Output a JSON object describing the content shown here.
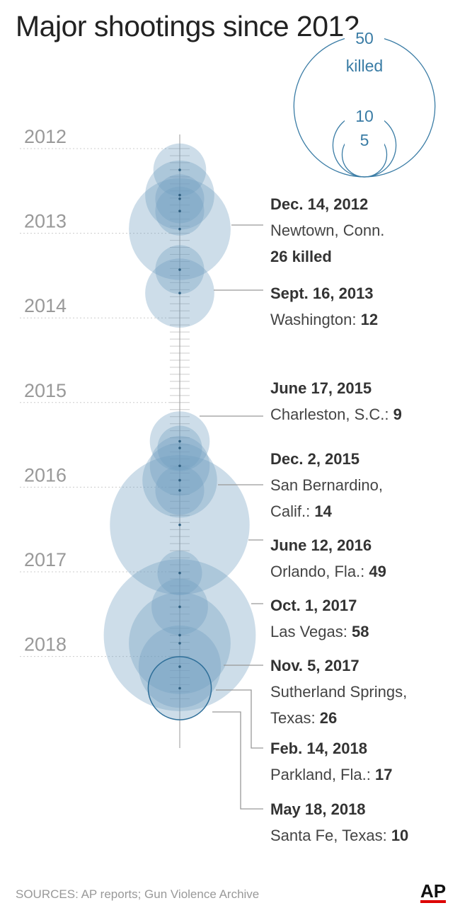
{
  "chart_data": {
    "type": "bubble-timeline",
    "title": "Major shootings since 2012",
    "y_axis_ticks": [
      "2012",
      "2013",
      "2014",
      "2015",
      "2016",
      "2017",
      "2018"
    ],
    "size_legend": {
      "values": [
        50,
        10,
        5
      ],
      "unit": "killed"
    },
    "colors": {
      "bubble": "#6f9fc0",
      "legend": "#3a7ca5",
      "text": "#444",
      "grid": "#bbb"
    },
    "events": [
      {
        "date": "2012-04-02",
        "killed": 7
      },
      {
        "date": "2012-07-20",
        "killed": 12
      },
      {
        "date": "2012-08-05",
        "killed": 6
      },
      {
        "date": "2012-09-27",
        "killed": 6
      },
      {
        "date": "2012-12-14",
        "killed": 26,
        "label": {
          "date": "Dec. 14, 2012",
          "place": "Newtown, Conn.",
          "count": "26 killed"
        }
      },
      {
        "date": "2013-06-07",
        "killed": 6
      },
      {
        "date": "2013-09-16",
        "killed": 12,
        "label": {
          "date": "Sept. 16, 2013",
          "place": "Washington: ",
          "count": "12"
        }
      },
      {
        "date": "2015-06-17",
        "killed": 9,
        "label": {
          "date": "June 17, 2015",
          "place": "Charleston, S.C.: ",
          "count": "9"
        }
      },
      {
        "date": "2015-07-16",
        "killed": 5
      },
      {
        "date": "2015-10-01",
        "killed": 9
      },
      {
        "date": "2015-12-02",
        "killed": 14,
        "label": {
          "date": "Dec. 2, 2015",
          "place": "San Bernardino,",
          "place2": "Calif.: ",
          "count": "14"
        }
      },
      {
        "date": "2016-01-15",
        "killed": 6
      },
      {
        "date": "2016-06-12",
        "killed": 49,
        "label": {
          "date": "June 12, 2016",
          "place": "Orlando, Fla.: ",
          "count": "49"
        }
      },
      {
        "date": "2017-10-01",
        "killed": 58,
        "label": {
          "date": "Oct. 1, 2017",
          "place": "Las Vegas: ",
          "count": "58"
        }
      },
      {
        "date": "2017-11-05",
        "killed": 26,
        "label": {
          "date": "Nov. 5, 2017",
          "place": "Sutherland Springs,",
          "place2": "Texas: ",
          "count": "26"
        }
      },
      {
        "date": "2017-01-06",
        "killed": 5
      },
      {
        "date": "2017-06-01",
        "killed": 8
      },
      {
        "date": "2018-02-14",
        "killed": 17,
        "label": {
          "date": "Feb. 14, 2018",
          "place": "Parkland, Fla.: ",
          "count": "17"
        }
      },
      {
        "date": "2018-05-18",
        "killed": 10,
        "label": {
          "date": "May 18, 2018",
          "place": "Santa Fe, Texas: ",
          "count": "10"
        }
      }
    ]
  },
  "source": "SOURCES: AP reports; Gun Violence Archive",
  "logo": "AP"
}
